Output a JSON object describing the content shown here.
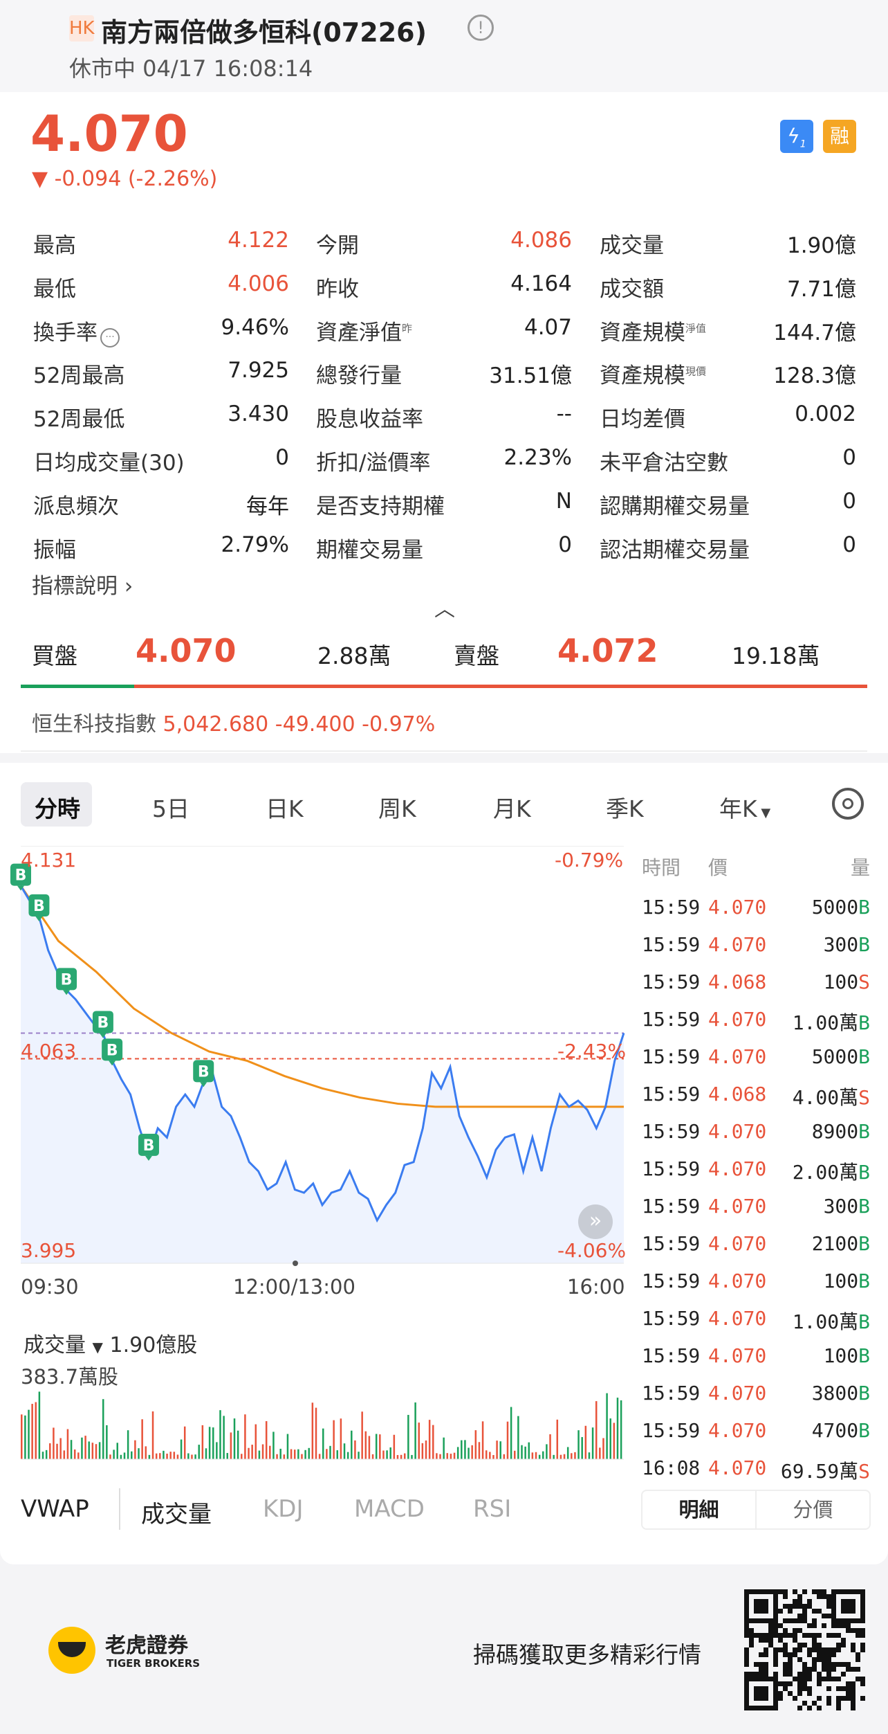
{
  "header": {
    "market": "HK",
    "title": "南方兩倍做多恒科(07226)",
    "status": "休市中 04/17 16:08:14"
  },
  "quote": {
    "price": "4.070",
    "change": "-0.094 (-2.26%)",
    "badge_flash": "1",
    "badge_margin": "融"
  },
  "stats": [
    [
      {
        "label": "最高",
        "value": "4.122",
        "red": true
      },
      {
        "label": "今開",
        "value": "4.086",
        "red": true
      },
      {
        "label": "成交量",
        "value": "1.90億"
      }
    ],
    [
      {
        "label": "最低",
        "value": "4.006",
        "red": true
      },
      {
        "label": "昨收",
        "value": "4.164"
      },
      {
        "label": "成交額",
        "value": "7.71億"
      }
    ],
    [
      {
        "label": "換手率",
        "value": "9.46%"
      },
      {
        "label": "資產淨值",
        "sup": "昨",
        "value": "4.07"
      },
      {
        "label": "資產規模",
        "sup": "淨值",
        "value": "144.7億"
      }
    ],
    [
      {
        "label": "52周最高",
        "value": "7.925"
      },
      {
        "label": "總發行量",
        "value": "31.51億"
      },
      {
        "label": "資產規模",
        "sup": "現價",
        "value": "128.3億"
      }
    ],
    [
      {
        "label": "52周最低",
        "value": "3.430"
      },
      {
        "label": "股息收益率",
        "value": "--"
      },
      {
        "label": "日均差價",
        "value": "0.002"
      }
    ],
    [
      {
        "label": "日均成交量(30)",
        "value": "0"
      },
      {
        "label": "折扣/溢價率",
        "value": "2.23%"
      },
      {
        "label": "未平倉沽空數",
        "value": "0"
      }
    ],
    [
      {
        "label": "派息頻次",
        "value": "每年"
      },
      {
        "label": "是否支持期權",
        "value": "N"
      },
      {
        "label": "認購期權交易量",
        "value": "0"
      }
    ],
    [
      {
        "label": "振幅",
        "value": "2.79%"
      },
      {
        "label": "期權交易量",
        "value": "0"
      },
      {
        "label": "認沽期權交易量",
        "value": "0"
      }
    ]
  ],
  "indicator_link": "指標說明",
  "orderbook": {
    "bid_label": "買盤",
    "bid_price": "4.070",
    "bid_vol": "2.88萬",
    "ask_label": "賣盤",
    "ask_price": "4.072",
    "ask_vol": "19.18萬"
  },
  "index": {
    "name": "恒生科技指數",
    "value": "5,042.680",
    "change": "-49.400",
    "pct": "-0.97%"
  },
  "tabs": [
    "分時",
    "5日",
    "日K",
    "周K",
    "月K",
    "季K",
    "年K"
  ],
  "chart": {
    "y_high": "4.131",
    "y_mid": "4.063",
    "y_low": "3.995",
    "pct_high": "-0.79%",
    "pct_mid": "-2.43%",
    "pct_low": "-4.06%",
    "x_labels": [
      "09:30",
      "12:00/13:00",
      "16:00"
    ],
    "prices": [
      4.118,
      4.113,
      4.108,
      4.097,
      4.09,
      4.084,
      4.081,
      4.077,
      4.073,
      4.07,
      4.061,
      4.055,
      4.05,
      4.039,
      4.03,
      4.039,
      4.036,
      4.046,
      4.05,
      4.046,
      4.054,
      4.057,
      4.046,
      4.043,
      4.036,
      4.028,
      4.025,
      4.019,
      4.021,
      4.028,
      4.019,
      4.018,
      4.021,
      4.014,
      4.018,
      4.019,
      4.025,
      4.018,
      4.016,
      4.009,
      4.014,
      4.018,
      4.027,
      4.028,
      4.039,
      4.057,
      4.052,
      4.059,
      4.043,
      4.036,
      4.03,
      4.023,
      4.032,
      4.036,
      4.037,
      4.025,
      4.036,
      4.025,
      4.039,
      4.05,
      4.046,
      4.048,
      4.045,
      4.039,
      4.046,
      4.061,
      4.07
    ],
    "vwap": [
      4.118,
      4.1,
      4.09,
      4.078,
      4.07,
      4.064,
      4.061,
      4.056,
      4.052,
      4.049,
      4.047,
      4.046,
      4.046,
      4.046,
      4.046,
      4.046,
      4.046
    ],
    "ref_close_line": 4.063,
    "current_line": 4.07,
    "buy_marker": "B",
    "colors": {
      "price": "#3b7cf0",
      "vwap": "#f0901a",
      "up": "#e8533a",
      "down": "#1aa05a"
    }
  },
  "volume": {
    "label": "成交量",
    "total": "1.90億股",
    "max": "383.7萬股"
  },
  "indicators": [
    "VWAP",
    "成交量",
    "KDJ",
    "MACD",
    "RSI"
  ],
  "trades": {
    "headers": [
      "時間",
      "價",
      "量"
    ],
    "rows": [
      [
        "15:59",
        "4.070",
        "5000",
        "B"
      ],
      [
        "15:59",
        "4.070",
        "300",
        "B"
      ],
      [
        "15:59",
        "4.068",
        "100",
        "S"
      ],
      [
        "15:59",
        "4.070",
        "1.00萬",
        "B"
      ],
      [
        "15:59",
        "4.070",
        "5000",
        "B"
      ],
      [
        "15:59",
        "4.068",
        "4.00萬",
        "S"
      ],
      [
        "15:59",
        "4.070",
        "8900",
        "B"
      ],
      [
        "15:59",
        "4.070",
        "2.00萬",
        "B"
      ],
      [
        "15:59",
        "4.070",
        "300",
        "B"
      ],
      [
        "15:59",
        "4.070",
        "2100",
        "B"
      ],
      [
        "15:59",
        "4.070",
        "100",
        "B"
      ],
      [
        "15:59",
        "4.070",
        "1.00萬",
        "B"
      ],
      [
        "15:59",
        "4.070",
        "100",
        "B"
      ],
      [
        "15:59",
        "4.070",
        "3800",
        "B"
      ],
      [
        "15:59",
        "4.070",
        "4700",
        "B"
      ],
      [
        "16:08",
        "4.070",
        "69.59萬",
        "S"
      ]
    ],
    "tab_detail": "明細",
    "tab_price": "分價"
  },
  "footer": {
    "brand": "老虎證券",
    "brand_en": "TIGER BROKERS",
    "slogan": "掃碼獲取更多精彩行情"
  }
}
